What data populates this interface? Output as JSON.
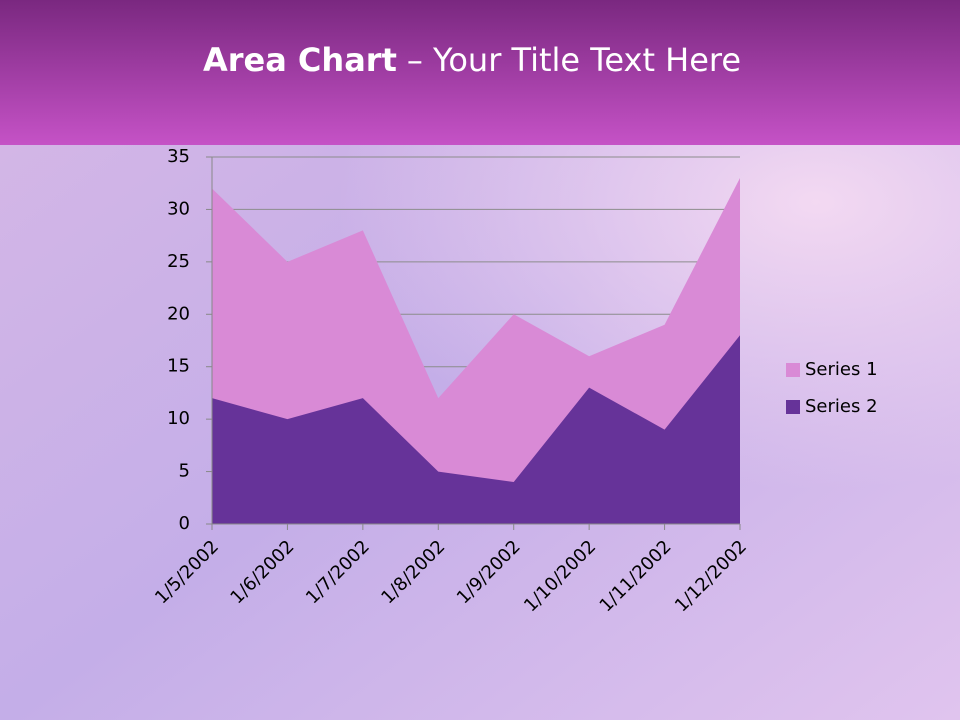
{
  "chart_data": {
    "type": "area",
    "title": {
      "bold": "Area Chart",
      "rest": "– Your Title Text Here"
    },
    "categories": [
      "1/5/2002",
      "1/6/2002",
      "1/7/2002",
      "1/8/2002",
      "1/9/2002",
      "1/10/2002",
      "1/11/2002",
      "1/12/2002"
    ],
    "series": [
      {
        "name": "Series 1",
        "color": "#d98ad6",
        "values": [
          32,
          25,
          28,
          12,
          20,
          16,
          19,
          33
        ]
      },
      {
        "name": "Series 2",
        "color": "#663399",
        "values": [
          12,
          10,
          12,
          5,
          4,
          13,
          9,
          18
        ]
      }
    ],
    "ylim": [
      0,
      35
    ],
    "yticks": [
      0,
      5,
      10,
      15,
      20,
      25,
      30,
      35
    ],
    "grid": true,
    "legend": "right"
  }
}
